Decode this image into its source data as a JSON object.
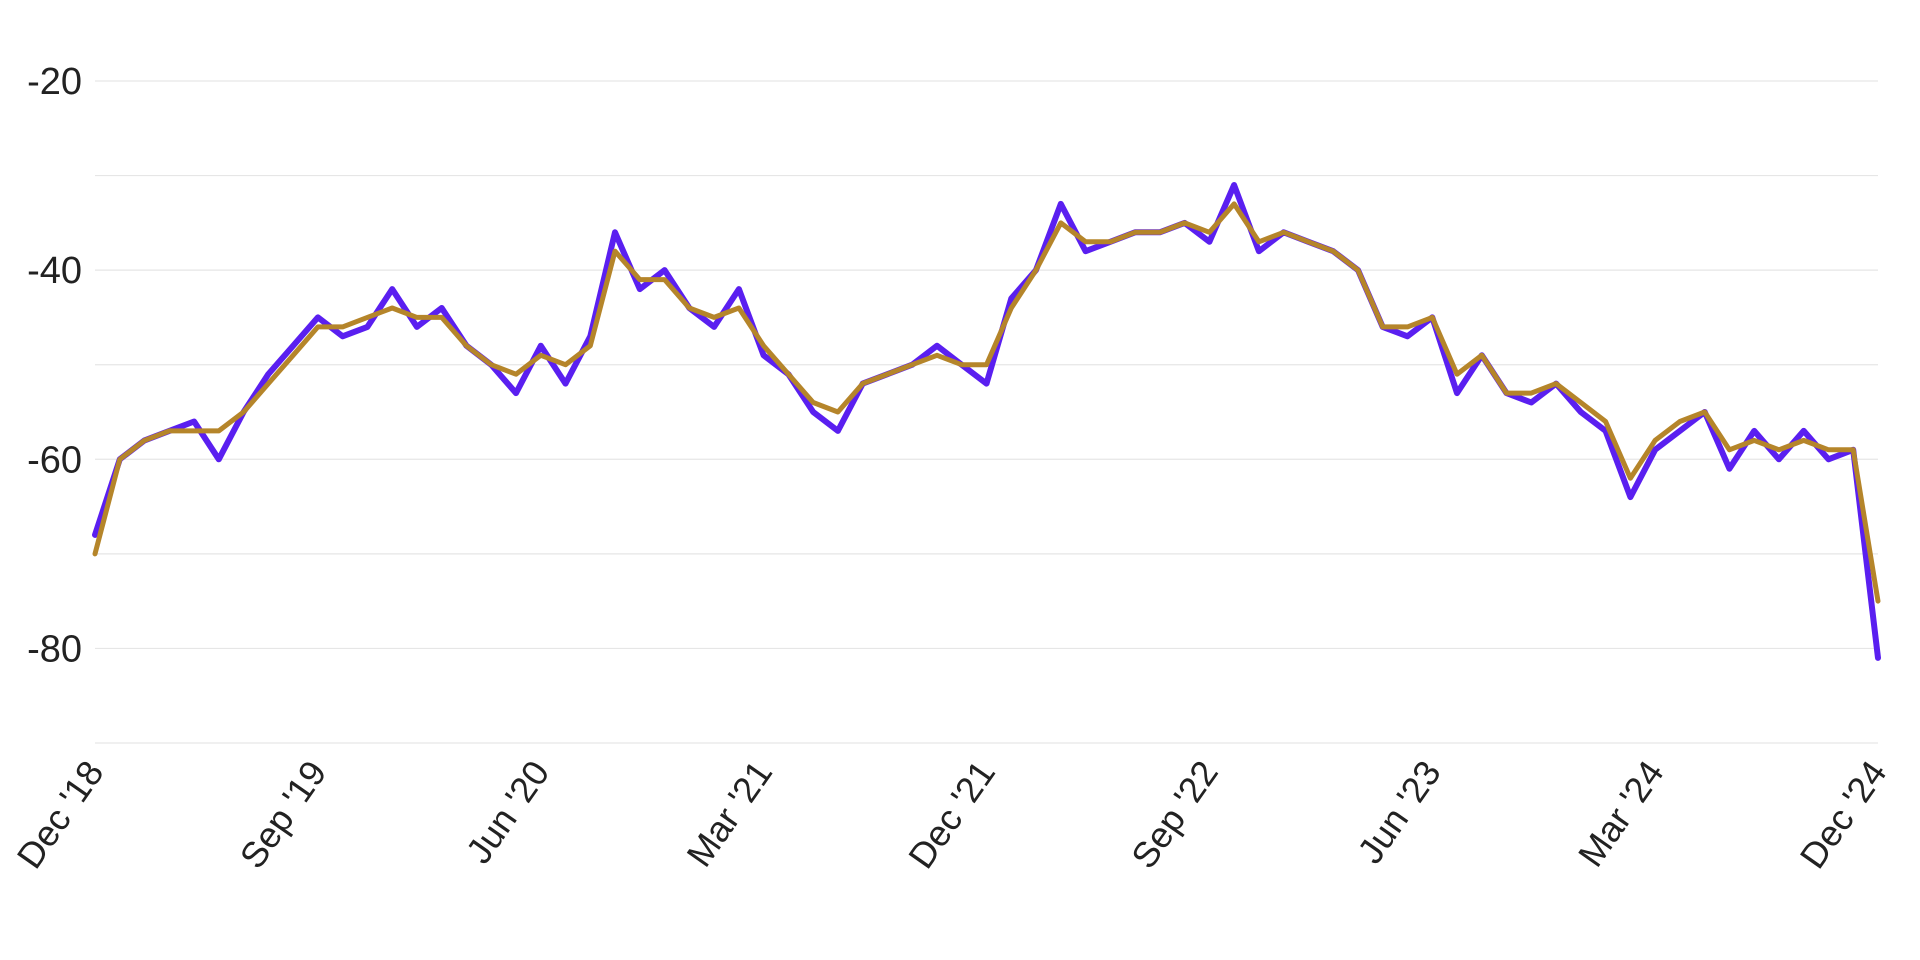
{
  "chart_data": {
    "type": "line",
    "title": "",
    "xlabel": "",
    "ylabel": "",
    "ylim": [
      -90,
      -15
    ],
    "y_ticks": [
      {
        "value": -20,
        "label": "-20"
      },
      {
        "value": -40,
        "label": "-40"
      },
      {
        "value": -60,
        "label": "-60"
      },
      {
        "value": -80,
        "label": "-80"
      }
    ],
    "grid_values": [
      -20,
      -30,
      -40,
      -50,
      -60,
      -70,
      -80,
      -90
    ],
    "grid": true,
    "legend": "none",
    "x_ticks": [
      {
        "date": "2018-12",
        "label": "Dec '18"
      },
      {
        "date": "2019-09",
        "label": "Sep '19"
      },
      {
        "date": "2020-06",
        "label": "Jun '20"
      },
      {
        "date": "2021-03",
        "label": "Mar '21"
      },
      {
        "date": "2021-12",
        "label": "Dec '21"
      },
      {
        "date": "2022-09",
        "label": "Sep '22"
      },
      {
        "date": "2023-06",
        "label": "Jun '23"
      },
      {
        "date": "2024-03",
        "label": "Mar '24"
      },
      {
        "date": "2024-12",
        "label": "Dec '24"
      }
    ],
    "x_range": [
      "2018-12",
      "2024-12"
    ],
    "series": [
      {
        "color": "#5a1ff0",
        "x": [
          "2018-12",
          "2019-01",
          "2019-02",
          "2019-03",
          "2019-04",
          "2019-05",
          "2019-06",
          "2019-07",
          "2019-08",
          "2019-09",
          "2019-10",
          "2019-11",
          "2019-12",
          "2020-01",
          "2020-02",
          "2020-03",
          "2020-04",
          "2020-05",
          "2020-06",
          "2020-07",
          "2020-08",
          "2020-09",
          "2020-10",
          "2020-11",
          "2020-12",
          "2021-01",
          "2021-02",
          "2021-03",
          "2021-04",
          "2021-05",
          "2021-06",
          "2021-07",
          "2021-08",
          "2021-09",
          "2021-10",
          "2021-11",
          "2021-12",
          "2022-01",
          "2022-02",
          "2022-03",
          "2022-04",
          "2022-05",
          "2022-06",
          "2022-07",
          "2022-08",
          "2022-09",
          "2022-10",
          "2022-11",
          "2022-12",
          "2023-01",
          "2023-02",
          "2023-03",
          "2023-04",
          "2023-05",
          "2023-06",
          "2023-07",
          "2023-08",
          "2023-09",
          "2023-10",
          "2023-11",
          "2023-12",
          "2024-01",
          "2024-02",
          "2024-03",
          "2024-04",
          "2024-05",
          "2024-06",
          "2024-07",
          "2024-08",
          "2024-09",
          "2024-10",
          "2024-11",
          "2024-12"
        ],
        "values": [
          -68,
          -60,
          -58,
          -57,
          -56,
          -60,
          -55,
          -51,
          -48,
          -45,
          -47,
          -46,
          -42,
          -46,
          -44,
          -48,
          -50,
          -53,
          -48,
          -52,
          -47,
          -36,
          -42,
          -40,
          -44,
          -46,
          -42,
          -49,
          -51,
          -55,
          -57,
          -52,
          -51,
          -50,
          -48,
          -50,
          -52,
          -43,
          -40,
          -33,
          -38,
          -37,
          -36,
          -36,
          -35,
          -37,
          -31,
          -38,
          -36,
          -37,
          -38,
          -40,
          -46,
          -47,
          -45,
          -53,
          -49,
          -53,
          -54,
          -52,
          -55,
          -57,
          -64,
          -59,
          -57,
          -55,
          -61,
          -57,
          -60,
          -57,
          -60,
          -59,
          -81
        ]
      },
      {
        "color": "#b5852a",
        "x": [
          "2018-12",
          "2019-01",
          "2019-02",
          "2019-03",
          "2019-04",
          "2019-05",
          "2019-06",
          "2019-07",
          "2019-08",
          "2019-09",
          "2019-10",
          "2019-11",
          "2019-12",
          "2020-01",
          "2020-02",
          "2020-03",
          "2020-04",
          "2020-05",
          "2020-06",
          "2020-07",
          "2020-08",
          "2020-09",
          "2020-10",
          "2020-11",
          "2020-12",
          "2021-01",
          "2021-02",
          "2021-03",
          "2021-04",
          "2021-05",
          "2021-06",
          "2021-07",
          "2021-08",
          "2021-09",
          "2021-10",
          "2021-11",
          "2021-12",
          "2022-01",
          "2022-02",
          "2022-03",
          "2022-04",
          "2022-05",
          "2022-06",
          "2022-07",
          "2022-08",
          "2022-09",
          "2022-10",
          "2022-11",
          "2022-12",
          "2023-01",
          "2023-02",
          "2023-03",
          "2023-04",
          "2023-05",
          "2023-06",
          "2023-07",
          "2023-08",
          "2023-09",
          "2023-10",
          "2023-11",
          "2023-12",
          "2024-01",
          "2024-02",
          "2024-03",
          "2024-04",
          "2024-05",
          "2024-06",
          "2024-07",
          "2024-08",
          "2024-09",
          "2024-10",
          "2024-11",
          "2024-12"
        ],
        "values": [
          -70,
          -60,
          -58,
          -57,
          -57,
          -57,
          -55,
          -52,
          -49,
          -46,
          -46,
          -45,
          -44,
          -45,
          -45,
          -48,
          -50,
          -51,
          -49,
          -50,
          -48,
          -38,
          -41,
          -41,
          -44,
          -45,
          -44,
          -48,
          -51,
          -54,
          -55,
          -52,
          -51,
          -50,
          -49,
          -50,
          -50,
          -44,
          -40,
          -35,
          -37,
          -37,
          -36,
          -36,
          -35,
          -36,
          -33,
          -37,
          -36,
          -37,
          -38,
          -40,
          -46,
          -46,
          -45,
          -51,
          -49,
          -53,
          -53,
          -52,
          -54,
          -56,
          -62,
          -58,
          -56,
          -55,
          -59,
          -58,
          -59,
          -58,
          -59,
          -59,
          -75
        ]
      }
    ]
  }
}
